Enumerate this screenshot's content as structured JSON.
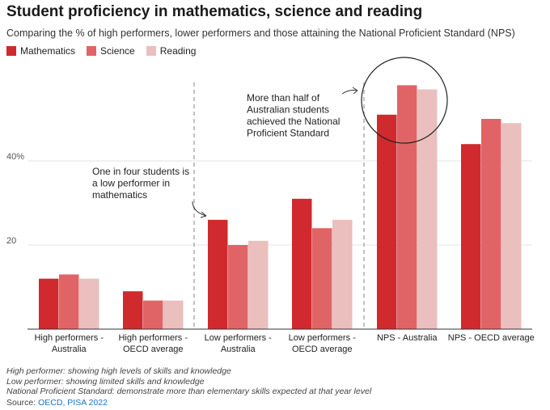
{
  "header": {
    "title": "Student proficiency in mathematics, science and reading",
    "subtitle": "Comparing the % of high performers, lower performers and those attaining the National Proficient Standard (NPS)"
  },
  "colors": {
    "mathematics": "#d0292e",
    "science": "#e06466",
    "reading": "#eabfbe",
    "grid": "#e3e3e3",
    "axis": "#333333",
    "divider": "#9a9a9a"
  },
  "chart_data": {
    "type": "bar",
    "title": "Student proficiency in mathematics, science and reading",
    "subtitle": "Comparing the % of high performers, lower performers and those attaining the National Proficient Standard (NPS)",
    "xlabel": "",
    "ylabel": "",
    "ylim": [
      0,
      58
    ],
    "yticks": [
      {
        "value": 20,
        "label": "20"
      },
      {
        "value": 40,
        "label": "40%"
      }
    ],
    "grid": true,
    "legend_position": "top-left",
    "categories": [
      [
        "High performers -",
        "Australia"
      ],
      [
        "High performers -",
        "OECD average"
      ],
      [
        "Low performers -",
        "Australia"
      ],
      [
        "Low performers -",
        "OECD average"
      ],
      [
        "NPS - Australia"
      ],
      [
        "NPS - OECD average"
      ]
    ],
    "series": [
      {
        "name": "Mathematics",
        "key": "mathematics",
        "values": [
          12,
          9,
          26,
          31,
          51,
          44
        ]
      },
      {
        "name": "Science",
        "key": "science",
        "values": [
          13,
          6.8,
          20,
          24,
          58,
          50
        ]
      },
      {
        "name": "Reading",
        "key": "reading",
        "values": [
          12,
          6.8,
          21,
          26,
          57,
          49
        ]
      }
    ],
    "annotations": [
      {
        "text": [
          "One in four students is",
          "a low performer in",
          "mathematics"
        ]
      },
      {
        "text": [
          "More than half of",
          "Australian students",
          "achieved the National",
          "Proficient Standard"
        ]
      }
    ]
  },
  "footer": {
    "notes": [
      "High performer: showing high levels of skills and knowledge",
      "Low performer: showing limited skills and knowledge",
      "National Proficient Standard: demonstrate more than elementary skills expected at that year level"
    ],
    "source_label": "Source: ",
    "source_link": "OECD, PISA 2022"
  }
}
